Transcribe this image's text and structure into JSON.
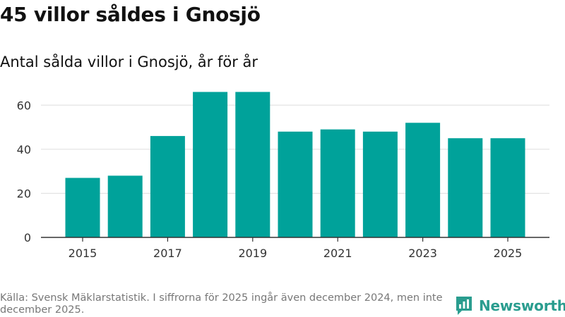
{
  "header": {
    "title": "45 villor såldes i Gnosjö",
    "subtitle": "Antal sålda villor i Gnosjö, år för år"
  },
  "footer": {
    "source": "Källa: Svensk Mäklarstatistik. I siffrorna för 2025 ingår även december 2024, men inte december 2025.",
    "brand": "Newsworthy"
  },
  "colors": {
    "bar": "#00a29a",
    "grid": "#dddddd",
    "axis": "#333333",
    "tick_text": "#333333",
    "brand": "#2a9d8f"
  },
  "chart_data": {
    "type": "bar",
    "title": "45 villor såldes i Gnosjö",
    "subtitle": "Antal sålda villor i Gnosjö, år för år",
    "xlabel": "",
    "ylabel": "",
    "categories": [
      2015,
      2016,
      2017,
      2018,
      2019,
      2020,
      2021,
      2022,
      2023,
      2024,
      2025
    ],
    "values": [
      27,
      28,
      46,
      66,
      66,
      48,
      49,
      48,
      52,
      45,
      45
    ],
    "x_tick_labels": [
      "2015",
      "2017",
      "2019",
      "2021",
      "2023",
      "2025"
    ],
    "y_ticks": [
      0,
      20,
      40,
      60
    ],
    "ylim": [
      0,
      70
    ],
    "grid": true,
    "legend": "none"
  }
}
